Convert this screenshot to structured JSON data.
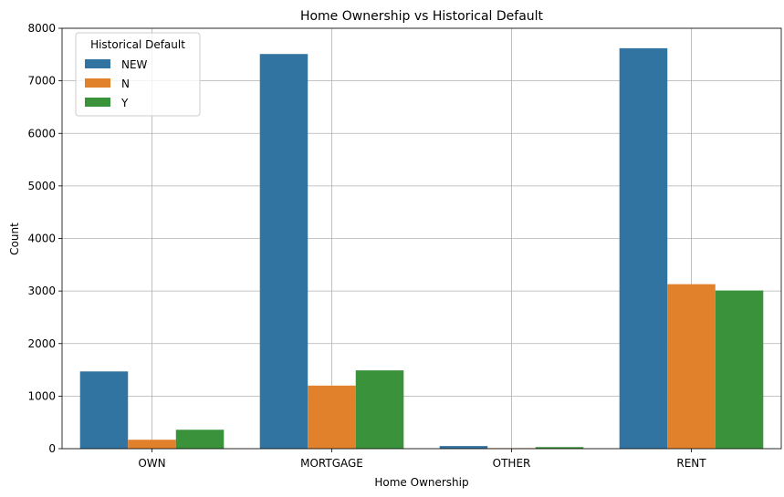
{
  "chart_data": {
    "type": "bar",
    "title": "Home Ownership vs Historical Default",
    "xlabel": "Home Ownership",
    "ylabel": "Count",
    "categories": [
      "OWN",
      "MORTGAGE",
      "OTHER",
      "RENT"
    ],
    "ylim": [
      0,
      8000
    ],
    "yticks": [
      "0",
      "1000",
      "2000",
      "3000",
      "4000",
      "5000",
      "6000",
      "7000",
      "8000"
    ],
    "grid": true,
    "legend": {
      "title": "Historical Default",
      "placement": "upper-left"
    },
    "series": [
      {
        "name": "NEW",
        "color": "#3274a1",
        "values": [
          1470,
          7510,
          50,
          7620
        ]
      },
      {
        "name": "N",
        "color": "#e1812c",
        "values": [
          170,
          1200,
          10,
          3130
        ]
      },
      {
        "name": "Y",
        "color": "#3a923a",
        "values": [
          360,
          1490,
          30,
          3010
        ]
      }
    ]
  }
}
